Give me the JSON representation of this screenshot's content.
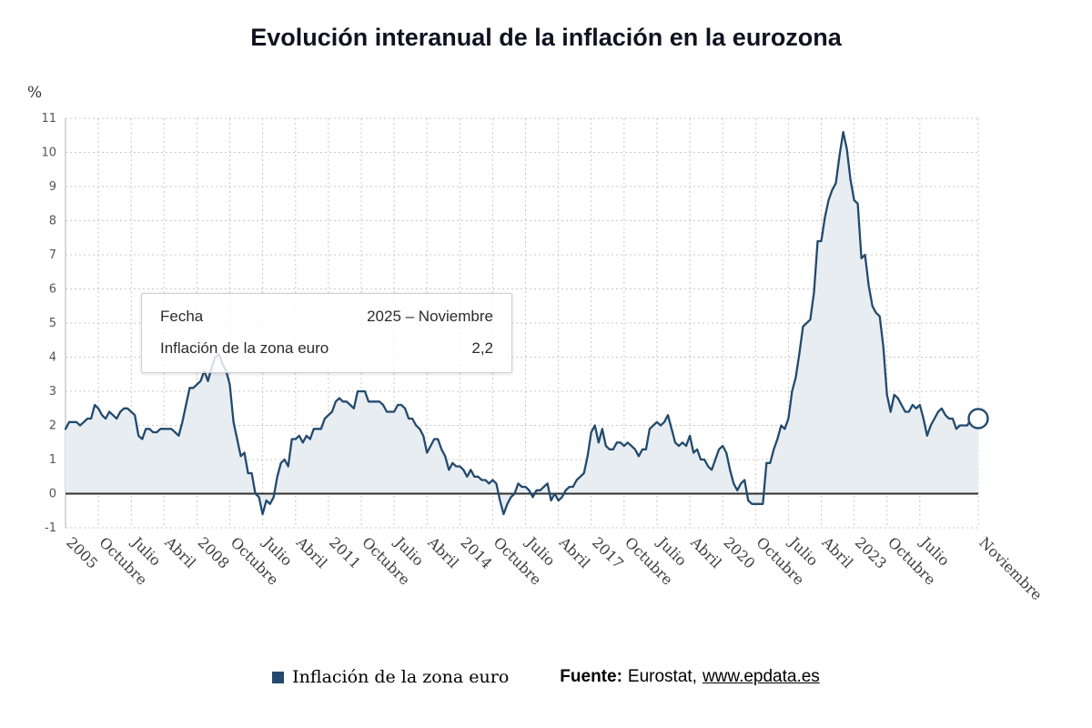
{
  "title": "Evolución interanual de la inflación en la eurozona",
  "y_axis_unit": "%",
  "tooltip": {
    "rows": [
      {
        "label": "Fecha",
        "value": "2025 – Noviembre"
      },
      {
        "label": "Inflación de la zona euro",
        "value": "2,2"
      }
    ]
  },
  "legend": {
    "series_label": "Inflación de la zona euro",
    "source_prefix": "Fuente:",
    "source_text": "Eurostat,",
    "source_link": "www.epdata.es"
  },
  "colors": {
    "line": "#234a6d",
    "fill": "#e8edf2",
    "zero_line": "#2f2f2f",
    "grid": "#c9c9c9",
    "swatch": "#234a6d"
  },
  "chart_data": {
    "type": "area",
    "title": "Evolución interanual de la inflación en la eurozona",
    "series_name": "Inflación de la zona euro",
    "ylabel": "%",
    "ylim": [
      -1,
      11
    ],
    "y_ticks": [
      -1,
      0,
      1,
      2,
      3,
      4,
      5,
      6,
      7,
      8,
      9,
      10,
      11
    ],
    "x_start": "2005-Enero",
    "x_end": "2025-Noviembre",
    "x_tick_indices": [
      0,
      9,
      18,
      27,
      36,
      45,
      54,
      63,
      72,
      81,
      90,
      99,
      108,
      117,
      126,
      135,
      144,
      153,
      162,
      171,
      180,
      189,
      198,
      207,
      216,
      225,
      234,
      250
    ],
    "x_tick_labels": [
      "2005",
      "Octubre",
      "Julio",
      "Abril",
      "2008",
      "Octubre",
      "Julio",
      "Abril",
      "2011",
      "Octubre",
      "Julio",
      "Abril",
      "2014",
      "Octubre",
      "Julio",
      "Abril",
      "2017",
      "Octubre",
      "Julio",
      "Abril",
      "2020",
      "Octubre",
      "Julio",
      "Abril",
      "2023",
      "Octubre",
      "Julio",
      "Noviembre"
    ],
    "last_point": {
      "label": "2025 – Noviembre",
      "value": 2.2
    },
    "values": [
      1.9,
      2.1,
      2.1,
      2.1,
      2.0,
      2.1,
      2.2,
      2.2,
      2.6,
      2.5,
      2.3,
      2.2,
      2.4,
      2.3,
      2.2,
      2.4,
      2.5,
      2.5,
      2.4,
      2.3,
      1.7,
      1.6,
      1.9,
      1.9,
      1.8,
      1.8,
      1.9,
      1.9,
      1.9,
      1.9,
      1.8,
      1.7,
      2.1,
      2.6,
      3.1,
      3.1,
      3.2,
      3.3,
      3.6,
      3.3,
      3.7,
      4.0,
      4.1,
      3.8,
      3.6,
      3.2,
      2.1,
      1.6,
      1.1,
      1.2,
      0.6,
      0.6,
      0.0,
      -0.1,
      -0.6,
      -0.2,
      -0.3,
      -0.1,
      0.5,
      0.9,
      1.0,
      0.8,
      1.6,
      1.6,
      1.7,
      1.5,
      1.7,
      1.6,
      1.9,
      1.9,
      1.9,
      2.2,
      2.3,
      2.4,
      2.7,
      2.8,
      2.7,
      2.7,
      2.6,
      2.5,
      3.0,
      3.0,
      3.0,
      2.7,
      2.7,
      2.7,
      2.7,
      2.6,
      2.4,
      2.4,
      2.4,
      2.6,
      2.6,
      2.5,
      2.2,
      2.2,
      2.0,
      1.9,
      1.7,
      1.2,
      1.4,
      1.6,
      1.6,
      1.3,
      1.1,
      0.7,
      0.9,
      0.8,
      0.8,
      0.7,
      0.5,
      0.7,
      0.5,
      0.5,
      0.4,
      0.4,
      0.3,
      0.4,
      0.3,
      -0.2,
      -0.6,
      -0.3,
      -0.1,
      0.0,
      0.3,
      0.2,
      0.2,
      0.1,
      -0.1,
      0.1,
      0.1,
      0.2,
      0.3,
      -0.2,
      0.0,
      -0.2,
      -0.1,
      0.1,
      0.2,
      0.2,
      0.4,
      0.5,
      0.6,
      1.1,
      1.8,
      2.0,
      1.5,
      1.9,
      1.4,
      1.3,
      1.3,
      1.5,
      1.5,
      1.4,
      1.5,
      1.4,
      1.3,
      1.1,
      1.3,
      1.3,
      1.9,
      2.0,
      2.1,
      2.0,
      2.1,
      2.3,
      1.9,
      1.5,
      1.4,
      1.5,
      1.4,
      1.7,
      1.2,
      1.3,
      1.0,
      1.0,
      0.8,
      0.7,
      1.0,
      1.3,
      1.4,
      1.2,
      0.7,
      0.3,
      0.1,
      0.3,
      0.4,
      -0.2,
      -0.3,
      -0.3,
      -0.3,
      -0.3,
      0.9,
      0.9,
      1.3,
      1.6,
      2.0,
      1.9,
      2.2,
      3.0,
      3.4,
      4.1,
      4.9,
      5.0,
      5.1,
      5.9,
      7.4,
      7.4,
      8.1,
      8.6,
      8.9,
      9.1,
      9.9,
      10.6,
      10.1,
      9.2,
      8.6,
      8.5,
      6.9,
      7.0,
      6.1,
      5.5,
      5.3,
      5.2,
      4.3,
      2.9,
      2.4,
      2.9,
      2.8,
      2.6,
      2.4,
      2.4,
      2.6,
      2.5,
      2.6,
      2.2,
      1.7,
      2.0,
      2.2,
      2.4,
      2.5,
      2.3,
      2.2,
      2.2,
      1.9,
      2.0,
      2.0,
      2.0,
      2.2,
      2.1,
      2.2
    ]
  }
}
